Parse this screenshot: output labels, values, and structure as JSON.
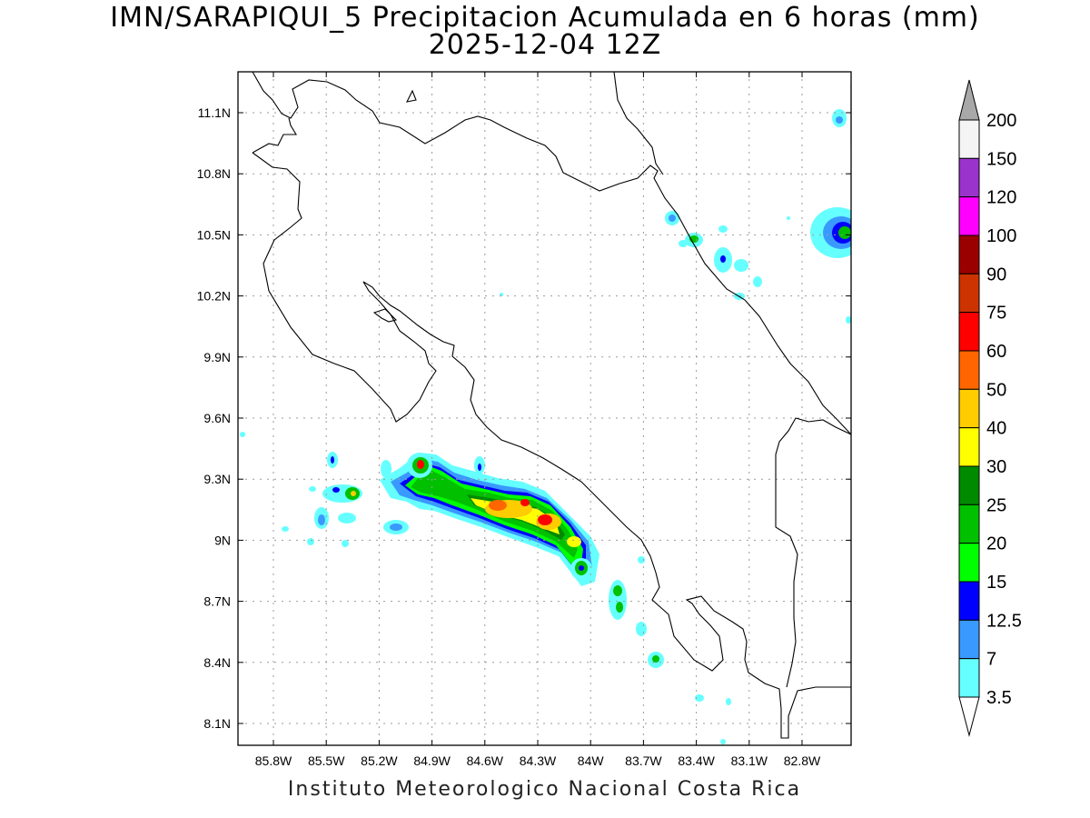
{
  "title": {
    "line1": "IMN/SARAPIQUI_5 Precipitacion Acumulada en 6 horas (mm)",
    "line2": "2025-12-04 12Z"
  },
  "footer": "Instituto Meteorologico Nacional Costa Rica",
  "map": {
    "lon_range": [
      -86.0,
      -82.6
    ],
    "lat_range": [
      8.0,
      11.3
    ],
    "lon_ticks": [
      "85.8W",
      "85.5W",
      "85.2W",
      "84.9W",
      "84.6W",
      "84.3W",
      "84W",
      "83.7W",
      "83.4W",
      "83.1W",
      "82.8W"
    ],
    "lat_ticks": [
      "11.1N",
      "10.8N",
      "10.5N",
      "10.2N",
      "9.9N",
      "9.6N",
      "9.3N",
      "9N",
      "8.7N",
      "8.4N",
      "8.1N"
    ],
    "grid": "dotted"
  },
  "colorbar": {
    "levels": [
      "200",
      "150",
      "120",
      "100",
      "90",
      "75",
      "60",
      "50",
      "40",
      "30",
      "25",
      "20",
      "15",
      "12.5",
      "7",
      "3.5"
    ],
    "colors": [
      "#f4f4f4",
      "#9a33cc",
      "#ff00ff",
      "#9b0000",
      "#cc3300",
      "#ff0000",
      "#ff6600",
      "#ffcc00",
      "#ffff00",
      "#008a00",
      "#00c000",
      "#00ff00",
      "#0000ff",
      "#3a99ff",
      "#66ffff"
    ],
    "over_color": "#a8a8a8",
    "under_color": "#ffffff"
  },
  "colors": {
    "coast": "#000000",
    "grid": "#9a9a9a"
  }
}
